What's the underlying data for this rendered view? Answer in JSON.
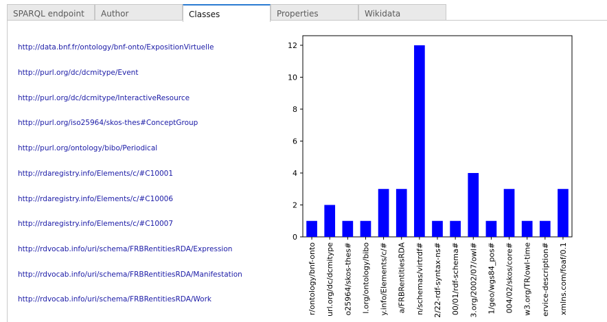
{
  "tabs": [
    {
      "label": "SPARQL endpoint",
      "active": false
    },
    {
      "label": "Author",
      "active": false
    },
    {
      "label": "Classes",
      "active": true
    },
    {
      "label": "Properties",
      "active": false
    },
    {
      "label": "Wikidata",
      "active": false
    }
  ],
  "classes": [
    "http://data.bnf.fr/ontology/bnf-onto/ExpositionVirtuelle",
    "http://purl.org/dc/dcmitype/Event",
    "http://purl.org/dc/dcmitype/InteractiveResource",
    "http://purl.org/iso25964/skos-thes#ConceptGroup",
    "http://purl.org/ontology/bibo/Periodical",
    "http://rdaregistry.info/Elements/c/#C10001",
    "http://rdaregistry.info/Elements/c/#C10006",
    "http://rdaregistry.info/Elements/c/#C10007",
    "http://rdvocab.info/uri/schema/FRBRentitiesRDA/Expression",
    "http://rdvocab.info/uri/schema/FRBRentitiesRDA/Manifestation",
    "http://rdvocab.info/uri/schema/FRBRentitiesRDA/Work"
  ],
  "colors": {
    "bar": "#0000ff",
    "link": "#1a1aa6",
    "active_tab_accent": "#2a7bd2"
  },
  "chart_data": {
    "type": "bar",
    "categories": [
      "r/ontology/bnf-onto",
      "url.org/dc/dcmitype",
      "o25964/skos-thes#",
      "l.org/ontology/bibo",
      "y.info/Elements/c/#",
      "a/FRBRentitiesRDA",
      "n/schemas/virtrdf#",
      "2/22-rdf-syntax-ns#",
      "00/01/rdf-schema#",
      "3.org/2002/07/owl#",
      "1/geo/wgs84_pos#",
      "004/02/skos/core#",
      "w3.org/TR/owl-time",
      "ervice-description#",
      "xmlns.com/foaf/0.1"
    ],
    "values": [
      1,
      2,
      1,
      1,
      3,
      3,
      12,
      1,
      1,
      4,
      1,
      3,
      1,
      1,
      3
    ],
    "ylim": [
      0,
      12.6
    ],
    "yticks": [
      0,
      2,
      4,
      6,
      8,
      10,
      12
    ],
    "grid": false
  }
}
